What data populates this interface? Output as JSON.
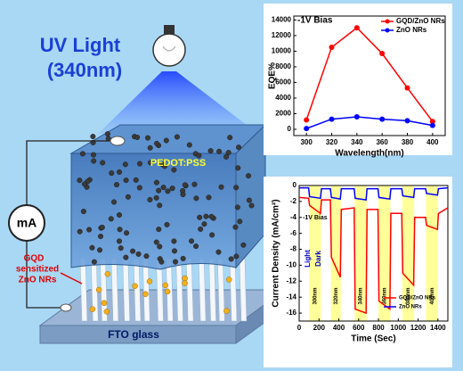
{
  "diagram": {
    "title": "UV Light",
    "subtitle": "(340nm)",
    "top_layer": "PEDOT:PSS",
    "bottom_layer": "FTO glass",
    "meter": "mA",
    "rod_label": [
      "GQD",
      "sensitized",
      "ZnO NRs"
    ]
  },
  "chart_data": [
    {
      "type": "line",
      "xlabel": "Wavelength(nm)",
      "ylabel": "EQE%",
      "annotation": "-1V Bias",
      "x": [
        300,
        320,
        340,
        360,
        380,
        400
      ],
      "series": [
        {
          "name": "GQD/ZnO NRs",
          "color": "#ff0000",
          "values": [
            1200,
            10500,
            13000,
            9700,
            5300,
            1000
          ]
        },
        {
          "name": "ZnO NRs",
          "color": "#0000ff",
          "values": [
            100,
            1300,
            1600,
            1300,
            1100,
            500
          ]
        }
      ],
      "markers": true,
      "legend": "upper right",
      "xlim": [
        290,
        410
      ],
      "xticks": [
        300,
        320,
        340,
        360,
        380,
        400
      ],
      "ylim": [
        -800,
        14500
      ],
      "yticks": [
        0,
        2000,
        4000,
        6000,
        8000,
        10000,
        12000,
        14000
      ]
    },
    {
      "type": "line",
      "xlabel": "Time (Sec)",
      "ylabel": "Current Density (mA/cm²)",
      "annotations": [
        "-1V Bias",
        "Light",
        "Dark"
      ],
      "x": [
        0,
        95,
        105,
        215,
        225,
        315,
        325,
        415,
        425,
        555,
        565,
        675,
        685,
        795,
        805,
        915,
        925,
        1035,
        1045,
        1155,
        1165,
        1275,
        1285,
        1395,
        1405,
        1500
      ],
      "series": [
        {
          "name": "GQD/ZnO NRs",
          "color": "#ff0000",
          "values": [
            -1.5,
            -1.6,
            -2.5,
            -3.5,
            -1.8,
            -1.8,
            -9,
            -11.5,
            -3,
            -2.8,
            -15.5,
            -16,
            -3,
            -3,
            -14.5,
            -15.5,
            -3.5,
            -3.5,
            -11,
            -12.5,
            -4,
            -4,
            -5,
            -5.5,
            -3.5,
            -2.8
          ]
        },
        {
          "name": "ZnO NRs",
          "color": "#0000ff",
          "values": [
            -0.3,
            -0.3,
            -1.4,
            -1.6,
            -0.4,
            -0.4,
            -1.5,
            -1.7,
            -0.4,
            -0.4,
            -1.6,
            -1.8,
            -0.4,
            -0.4,
            -1.5,
            -1.7,
            -0.4,
            -0.4,
            -1.3,
            -1.5,
            -0.4,
            -0.4,
            -1,
            -1.2,
            -0.4,
            -0.3
          ]
        }
      ],
      "bands": [
        {
          "start": 100,
          "end": 220,
          "label": "300nm"
        },
        {
          "start": 320,
          "end": 420,
          "label": "320nm"
        },
        {
          "start": 560,
          "end": 680,
          "label": "340nm"
        },
        {
          "start": 800,
          "end": 920,
          "label": "360nm"
        },
        {
          "start": 1040,
          "end": 1160,
          "label": "380nm"
        },
        {
          "start": 1280,
          "end": 1400,
          "label": "400nm"
        }
      ],
      "band_color": "#ffff99",
      "legend": "lower right",
      "xlim": [
        0,
        1500
      ],
      "xticks": [
        0,
        200,
        400,
        600,
        800,
        1000,
        1200,
        1400
      ],
      "ylim": [
        -17,
        0
      ],
      "yticks": [
        0,
        -2,
        -4,
        -6,
        -8,
        -10,
        -12,
        -14,
        -16
      ]
    }
  ]
}
